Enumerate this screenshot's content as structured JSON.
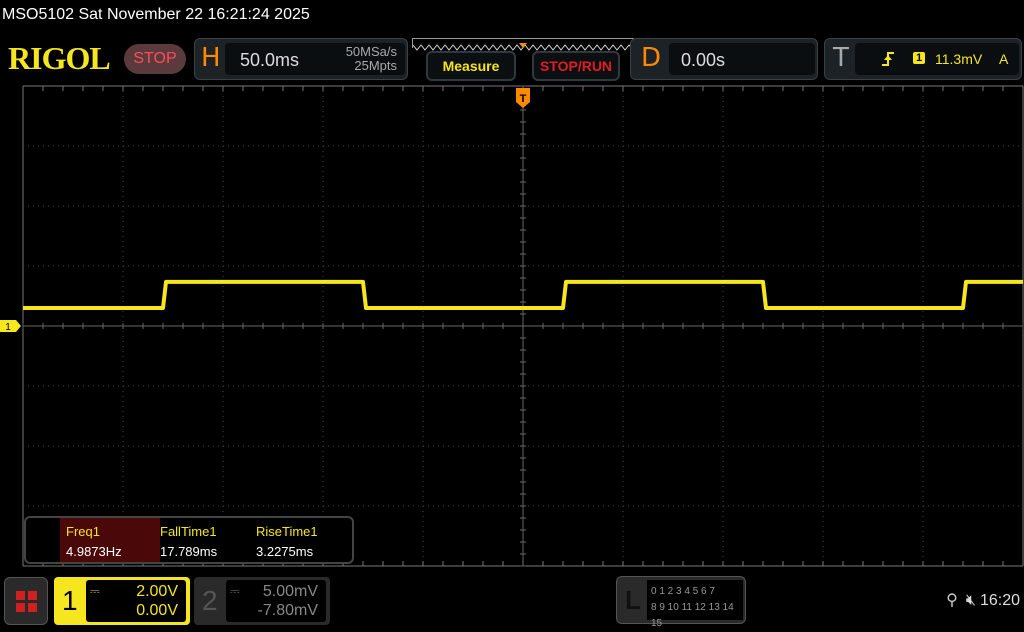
{
  "title": "MSO5102  Sat November 22 16:21:24 2025",
  "logo": "RIGOL",
  "run_state": "STOP",
  "horizontal": {
    "label": "H",
    "timebase": "50.0ms",
    "sample_rate": "50MSa/s",
    "memory_depth": "25Mpts"
  },
  "buttons": {
    "measure": "Measure",
    "stop_run": "STOP/RUN"
  },
  "delay": {
    "label": "D",
    "value": "0.00s"
  },
  "trigger": {
    "label": "T",
    "source": "1",
    "level": "11.3mV",
    "mode": "A",
    "slope": "rising-edge-icon"
  },
  "measurements": [
    {
      "name": "Freq1",
      "value": "4.9873Hz"
    },
    {
      "name": "FallTime1",
      "value": "17.789ms"
    },
    {
      "name": "RiseTime1",
      "value": "3.2275ms"
    }
  ],
  "channel1": {
    "label": "1",
    "scale": "2.00V",
    "offset": "0.00V",
    "coupling": "dc-icon",
    "color": "#f5e61e"
  },
  "channel2": {
    "label": "2",
    "scale": "5.00mV",
    "offset": "-7.80mV",
    "coupling": "dc-icon"
  },
  "logic": {
    "label": "L",
    "row1": "0 1 2 3  4 5 6 7",
    "row2": "8 9 10 11 12 13 14 15"
  },
  "status": {
    "usb": "usb-icon",
    "sound": "mute-icon",
    "time": "16:20"
  },
  "waveform": {
    "low_v": 0.6,
    "high_v": 1.47,
    "rising_edges_ms": [
      -180,
      20,
      220
    ],
    "falling_edges_ms": [
      -80,
      120
    ],
    "volts_per_div": 2,
    "ms_per_div": 50
  }
}
